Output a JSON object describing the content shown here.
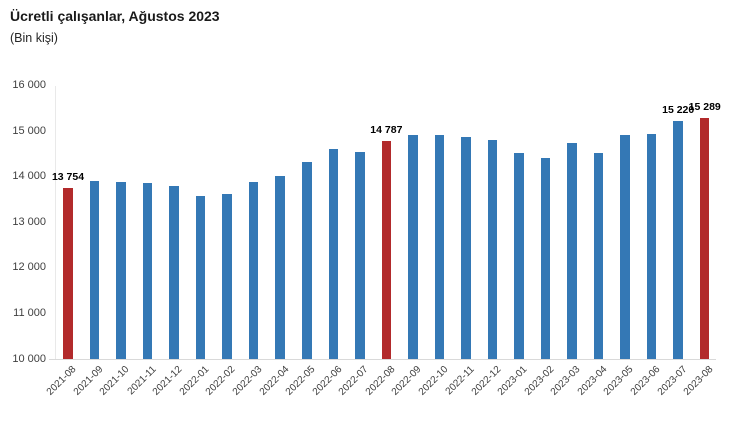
{
  "header": {
    "title": "Ücretli çalışanlar, Ağustos 2023",
    "subtitle": "(Bin kişi)"
  },
  "chart_data": {
    "type": "bar",
    "title": "Ücretli çalışanlar, Ağustos 2023",
    "subtitle": "(Bin kişi)",
    "categories": [
      "2021-08",
      "2021-09",
      "2021-10",
      "2021-11",
      "2021-12",
      "2022-01",
      "2022-02",
      "2022-03",
      "2022-04",
      "2022-05",
      "2022-06",
      "2022-07",
      "2022-08",
      "2022-09",
      "2022-10",
      "2022-11",
      "2022-12",
      "2023-01",
      "2023-02",
      "2023-03",
      "2023-04",
      "2023-05",
      "2023-06",
      "2023-07",
      "2023-08"
    ],
    "values": [
      13754,
      13910,
      13882,
      13858,
      13796,
      13571,
      13629,
      13888,
      14005,
      14319,
      14617,
      14550,
      14787,
      14925,
      14904,
      14861,
      14814,
      14516,
      14402,
      14730,
      14511,
      14907,
      14945,
      15220,
      15289
    ],
    "highlighted_categories": [
      "2021-08",
      "2022-08",
      "2023-08"
    ],
    "value_labels": [
      {
        "category": "2021-08",
        "text": "13 754"
      },
      {
        "category": "2022-08",
        "text": "14 787"
      },
      {
        "category": "2023-07",
        "text": "15 220"
      },
      {
        "category": "2023-08",
        "text": "15 289"
      }
    ],
    "ylim": [
      10000,
      16000
    ],
    "yticks": [
      {
        "value": 10000,
        "label": "10 000"
      },
      {
        "value": 11000,
        "label": "11 000"
      },
      {
        "value": 12000,
        "label": "12 000"
      },
      {
        "value": 13000,
        "label": "13 000"
      },
      {
        "value": 14000,
        "label": "14 000"
      },
      {
        "value": 15000,
        "label": "15 000"
      },
      {
        "value": 16000,
        "label": "16 000"
      }
    ],
    "xlabel": "",
    "ylabel": "",
    "grid": false,
    "legend": false,
    "colors": {
      "bar": "#3478b5",
      "highlight": "#b22a2b",
      "axis_line": "#d9d9d9",
      "y_axis_line": "#e9e9e9",
      "tick_text": "#404040",
      "label_text": "#000000"
    }
  }
}
